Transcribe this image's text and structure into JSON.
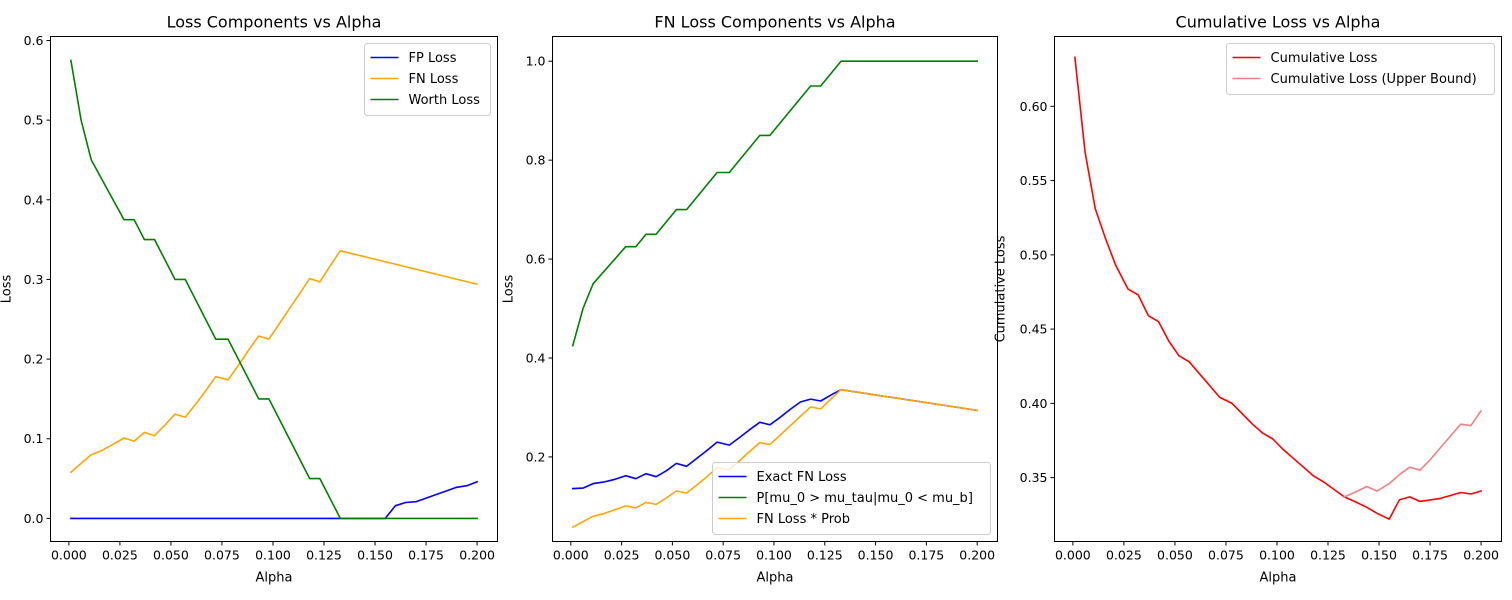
{
  "figure": {
    "colors": {
      "blue": "#0000ff",
      "orange": "#ffa500",
      "green": "#008000",
      "red": "#ff0000",
      "lightcoral": "#f08080"
    }
  },
  "chart_data": [
    {
      "type": "line",
      "title": "Loss Components vs Alpha",
      "xlabel": "Alpha",
      "ylabel": "Loss",
      "xlim": [
        -0.009,
        0.21
      ],
      "ylim": [
        -0.029,
        0.605
      ],
      "xticks": [
        0.0,
        0.025,
        0.05,
        0.075,
        0.1,
        0.125,
        0.15,
        0.175,
        0.2
      ],
      "xtick_labels": [
        "0.000",
        "0.025",
        "0.050",
        "0.075",
        "0.100",
        "0.125",
        "0.150",
        "0.175",
        "0.200"
      ],
      "yticks": [
        0.0,
        0.1,
        0.2,
        0.3,
        0.4,
        0.5,
        0.6
      ],
      "ytick_labels": [
        "0.0",
        "0.1",
        "0.2",
        "0.3",
        "0.4",
        "0.5",
        "0.6"
      ],
      "legend": "top-right",
      "series": [
        {
          "name": "FP Loss",
          "color": "#0000ff",
          "x": [
            0.001,
            0.133,
            0.155,
            0.16,
            0.165,
            0.17,
            0.19,
            0.195,
            0.2
          ],
          "y": [
            0.0,
            0.0,
            0.0,
            0.016,
            0.02,
            0.021,
            0.039,
            0.041,
            0.046
          ]
        },
        {
          "name": "FN Loss",
          "color": "#ffa500",
          "x": [
            0.001,
            0.006,
            0.011,
            0.016,
            0.021,
            0.027,
            0.032,
            0.037,
            0.042,
            0.047,
            0.052,
            0.057,
            0.062,
            0.067,
            0.072,
            0.078,
            0.083,
            0.088,
            0.093,
            0.098,
            0.103,
            0.108,
            0.113,
            0.118,
            0.123,
            0.128,
            0.133,
            0.2
          ],
          "y": [
            0.058,
            0.069,
            0.08,
            0.085,
            0.092,
            0.101,
            0.097,
            0.108,
            0.104,
            0.117,
            0.131,
            0.127,
            0.143,
            0.16,
            0.178,
            0.174,
            0.192,
            0.211,
            0.229,
            0.225,
            0.244,
            0.263,
            0.282,
            0.301,
            0.297,
            0.317,
            0.336,
            0.294
          ]
        },
        {
          "name": "Worth Loss",
          "color": "#008000",
          "x": [
            0.001,
            0.006,
            0.011,
            0.027,
            0.032,
            0.037,
            0.042,
            0.052,
            0.057,
            0.072,
            0.078,
            0.093,
            0.098,
            0.118,
            0.123,
            0.133,
            0.2
          ],
          "y": [
            0.575,
            0.5,
            0.45,
            0.375,
            0.375,
            0.35,
            0.35,
            0.3,
            0.3,
            0.225,
            0.225,
            0.15,
            0.15,
            0.05,
            0.05,
            0.0,
            0.0
          ]
        }
      ]
    },
    {
      "type": "line",
      "title": "FN Loss Components vs Alpha",
      "xlabel": "Alpha",
      "ylabel": "Loss",
      "xlim": [
        -0.009,
        0.21
      ],
      "ylim": [
        0.029,
        1.05
      ],
      "xticks": [
        0.0,
        0.025,
        0.05,
        0.075,
        0.1,
        0.125,
        0.15,
        0.175,
        0.2
      ],
      "xtick_labels": [
        "0.000",
        "0.025",
        "0.050",
        "0.075",
        "0.100",
        "0.125",
        "0.150",
        "0.175",
        "0.200"
      ],
      "yticks": [
        0.2,
        0.4,
        0.6,
        0.8,
        1.0
      ],
      "ytick_labels": [
        "0.2",
        "0.4",
        "0.6",
        "0.8",
        "1.0"
      ],
      "legend": "bottom-right",
      "series": [
        {
          "name": "Exact FN Loss",
          "color": "#0000ff",
          "x": [
            0.001,
            0.006,
            0.011,
            0.016,
            0.021,
            0.027,
            0.032,
            0.037,
            0.042,
            0.047,
            0.052,
            0.057,
            0.062,
            0.067,
            0.072,
            0.078,
            0.083,
            0.088,
            0.093,
            0.098,
            0.103,
            0.108,
            0.113,
            0.118,
            0.123,
            0.128,
            0.133,
            0.2
          ],
          "y": [
            0.136,
            0.137,
            0.146,
            0.149,
            0.154,
            0.162,
            0.156,
            0.166,
            0.16,
            0.172,
            0.187,
            0.181,
            0.197,
            0.213,
            0.23,
            0.224,
            0.239,
            0.255,
            0.27,
            0.265,
            0.28,
            0.296,
            0.311,
            0.317,
            0.313,
            0.325,
            0.336,
            0.294
          ]
        },
        {
          "name": "P[mu_0 > mu_tau|mu_0 < mu_b]",
          "color": "#008000",
          "x": [
            0.001,
            0.006,
            0.011,
            0.027,
            0.032,
            0.037,
            0.042,
            0.052,
            0.057,
            0.072,
            0.078,
            0.093,
            0.098,
            0.118,
            0.123,
            0.133,
            0.2
          ],
          "y": [
            0.425,
            0.5,
            0.55,
            0.625,
            0.625,
            0.65,
            0.65,
            0.7,
            0.7,
            0.775,
            0.775,
            0.85,
            0.85,
            0.95,
            0.95,
            1.0,
            1.0
          ]
        },
        {
          "name": "FN Loss * Prob",
          "color": "#ffa500",
          "x": [
            0.001,
            0.006,
            0.011,
            0.016,
            0.021,
            0.027,
            0.032,
            0.037,
            0.042,
            0.047,
            0.052,
            0.057,
            0.062,
            0.067,
            0.072,
            0.078,
            0.083,
            0.088,
            0.093,
            0.098,
            0.103,
            0.108,
            0.113,
            0.118,
            0.123,
            0.128,
            0.133,
            0.2
          ],
          "y": [
            0.058,
            0.069,
            0.08,
            0.085,
            0.092,
            0.101,
            0.097,
            0.108,
            0.104,
            0.117,
            0.131,
            0.127,
            0.143,
            0.16,
            0.178,
            0.174,
            0.192,
            0.211,
            0.229,
            0.225,
            0.244,
            0.263,
            0.282,
            0.301,
            0.297,
            0.317,
            0.336,
            0.294
          ]
        }
      ]
    },
    {
      "type": "line",
      "title": "Cumulative Loss vs Alpha",
      "xlabel": "Alpha",
      "ylabel": "Cumulative Loss",
      "xlim": [
        -0.009,
        0.21
      ],
      "ylim": [
        0.307,
        0.647
      ],
      "xticks": [
        0.0,
        0.025,
        0.05,
        0.075,
        0.1,
        0.125,
        0.15,
        0.175,
        0.2
      ],
      "xtick_labels": [
        "0.000",
        "0.025",
        "0.050",
        "0.075",
        "0.100",
        "0.125",
        "0.150",
        "0.175",
        "0.200"
      ],
      "yticks": [
        0.35,
        0.4,
        0.45,
        0.5,
        0.55,
        0.6
      ],
      "ytick_labels": [
        "0.35",
        "0.40",
        "0.45",
        "0.50",
        "0.55",
        "0.60"
      ],
      "legend": "top-right",
      "series": [
        {
          "name": "Cumulative Loss",
          "color": "#ff0000",
          "x": [
            0.001,
            0.006,
            0.011,
            0.016,
            0.021,
            0.027,
            0.032,
            0.037,
            0.042,
            0.047,
            0.052,
            0.057,
            0.062,
            0.067,
            0.072,
            0.078,
            0.083,
            0.088,
            0.093,
            0.098,
            0.103,
            0.108,
            0.113,
            0.118,
            0.123,
            0.128,
            0.133,
            0.138,
            0.144,
            0.149,
            0.155,
            0.16,
            0.165,
            0.17,
            0.175,
            0.18,
            0.185,
            0.19,
            0.195,
            0.2
          ],
          "y": [
            0.633,
            0.569,
            0.531,
            0.511,
            0.493,
            0.477,
            0.473,
            0.459,
            0.455,
            0.442,
            0.432,
            0.428,
            0.42,
            0.412,
            0.404,
            0.4,
            0.393,
            0.386,
            0.38,
            0.376,
            0.369,
            0.363,
            0.357,
            0.351,
            0.347,
            0.342,
            0.337,
            0.334,
            0.33,
            0.326,
            0.322,
            0.335,
            0.337,
            0.334,
            0.335,
            0.336,
            0.338,
            0.34,
            0.339,
            0.341
          ]
        },
        {
          "name": "Cumulative Loss (Upper Bound)",
          "color": "#f08080",
          "x": [
            0.133,
            0.138,
            0.144,
            0.149,
            0.155,
            0.16,
            0.165,
            0.17,
            0.175,
            0.18,
            0.185,
            0.19,
            0.195,
            0.2
          ],
          "y": [
            0.337,
            0.34,
            0.344,
            0.341,
            0.346,
            0.352,
            0.357,
            0.355,
            0.362,
            0.37,
            0.378,
            0.386,
            0.385,
            0.395
          ]
        }
      ]
    }
  ]
}
